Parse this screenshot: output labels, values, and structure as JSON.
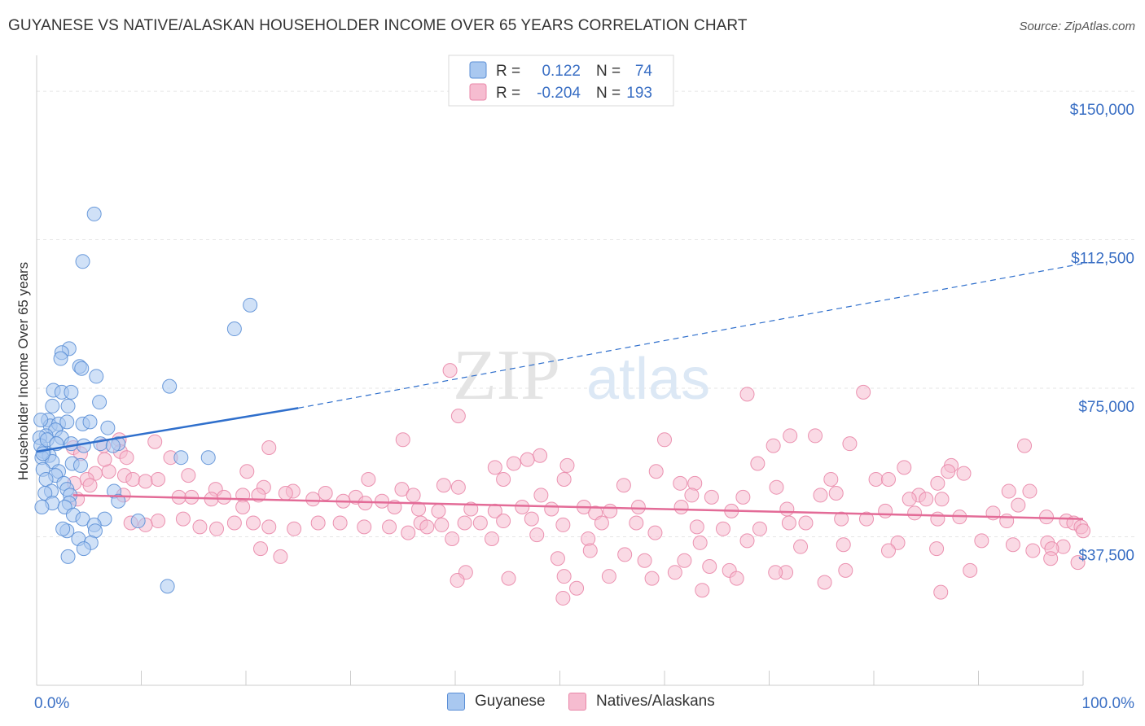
{
  "title": "GUYANESE VS NATIVE/ALASKAN HOUSEHOLDER INCOME OVER 65 YEARS CORRELATION CHART",
  "source": "Source: ZipAtlas.com",
  "watermark": {
    "zip": "ZIP",
    "atlas": "atlas"
  },
  "legend": {
    "guyanese": {
      "r_label": "R =",
      "r_value": "0.122",
      "n_label": "N =",
      "n_value": "74"
    },
    "natives": {
      "r_label": "R =",
      "r_value": "-0.204",
      "n_label": "N =",
      "n_value": "193"
    }
  },
  "bottom_legend": {
    "guyanese": "Guyanese",
    "natives": "Natives/Alaskans"
  },
  "colors": {
    "guyanese_fill": "#a9c8f0",
    "guyanese_stroke": "#5b8fd6",
    "guyanese_line": "#2f6fcc",
    "natives_fill": "#f6bcd0",
    "natives_stroke": "#e987a8",
    "natives_line": "#e36b97",
    "tick_label": "#3a6fc4",
    "grid": "#e6e6e6"
  },
  "chart_data": {
    "type": "scatter",
    "title": "GUYANESE VS NATIVE/ALASKAN HOUSEHOLDER INCOME OVER 65 YEARS CORRELATION CHART",
    "xlabel": "",
    "ylabel": "Householder Income Over 65 years",
    "xlim": [
      0,
      100
    ],
    "ylim": [
      0,
      157000
    ],
    "x_tick_labels": [
      "0.0%",
      "100.0%"
    ],
    "y_ticks": [
      37500,
      75000,
      112500,
      150000
    ],
    "y_tick_labels": [
      "$37,500",
      "$75,000",
      "$112,500",
      "$150,000"
    ],
    "grid": true,
    "legend_position": "top-center",
    "series": [
      {
        "name": "Guyanese",
        "trend": {
          "x": [
            0,
            25
          ],
          "y": [
            59000,
            70000
          ],
          "extended_to": [
            100,
            106500
          ]
        },
        "points": [
          [
            5.5,
            119000
          ],
          [
            4.4,
            107000
          ],
          [
            20.4,
            96000
          ],
          [
            18.9,
            90000
          ],
          [
            3.1,
            85000
          ],
          [
            2.4,
            84000
          ],
          [
            2.3,
            82500
          ],
          [
            4.1,
            80500
          ],
          [
            4.3,
            80000
          ],
          [
            5.7,
            78000
          ],
          [
            1.6,
            74500
          ],
          [
            2.4,
            74000
          ],
          [
            3.3,
            74000
          ],
          [
            12.7,
            75500
          ],
          [
            6.0,
            71500
          ],
          [
            3.0,
            70500
          ],
          [
            1.5,
            70500
          ],
          [
            1.1,
            67000
          ],
          [
            1.3,
            65500
          ],
          [
            2.1,
            66000
          ],
          [
            2.9,
            66500
          ],
          [
            4.4,
            66000
          ],
          [
            5.1,
            66500
          ],
          [
            0.4,
            67000
          ],
          [
            1.8,
            64500
          ],
          [
            6.8,
            65000
          ],
          [
            0.9,
            63000
          ],
          [
            0.3,
            62500
          ],
          [
            2.4,
            62500
          ],
          [
            3.3,
            61000
          ],
          [
            4.5,
            60500
          ],
          [
            6.1,
            61000
          ],
          [
            7.8,
            61000
          ],
          [
            7.3,
            60500
          ],
          [
            0.7,
            59000
          ],
          [
            1.2,
            58000
          ],
          [
            0.5,
            57500
          ],
          [
            1.5,
            56500
          ],
          [
            3.4,
            56000
          ],
          [
            4.2,
            55500
          ],
          [
            13.8,
            57500
          ],
          [
            16.4,
            57500
          ],
          [
            0.6,
            54500
          ],
          [
            2.1,
            54000
          ],
          [
            1.8,
            53000
          ],
          [
            0.9,
            52000
          ],
          [
            2.6,
            51000
          ],
          [
            1.4,
            49000
          ],
          [
            2.9,
            49500
          ],
          [
            0.8,
            48500
          ],
          [
            7.4,
            49000
          ],
          [
            3.2,
            48000
          ],
          [
            1.5,
            46000
          ],
          [
            3.1,
            46000
          ],
          [
            0.5,
            45000
          ],
          [
            2.7,
            45000
          ],
          [
            7.8,
            46500
          ],
          [
            3.5,
            43000
          ],
          [
            4.4,
            42000
          ],
          [
            6.5,
            42000
          ],
          [
            9.7,
            41500
          ],
          [
            5.5,
            40500
          ],
          [
            2.9,
            39000
          ],
          [
            5.6,
            39000
          ],
          [
            2.5,
            39500
          ],
          [
            4.0,
            37000
          ],
          [
            5.2,
            36000
          ],
          [
            4.5,
            34500
          ],
          [
            3.0,
            32500
          ],
          [
            12.5,
            25000
          ],
          [
            0.4,
            60500
          ],
          [
            0.6,
            58500
          ],
          [
            1.0,
            62000
          ],
          [
            1.9,
            61000
          ]
        ]
      },
      {
        "name": "Natives/Alaskans",
        "trend": {
          "x": [
            3.5,
            100
          ],
          "y": [
            48000,
            42000
          ]
        },
        "points": [
          [
            39.5,
            79500
          ],
          [
            67.9,
            73500
          ],
          [
            79.0,
            74000
          ],
          [
            40.3,
            68000
          ],
          [
            35.0,
            62000
          ],
          [
            60.0,
            62000
          ],
          [
            72.0,
            63000
          ],
          [
            74.4,
            63000
          ],
          [
            77.7,
            61000
          ],
          [
            7.9,
            62000
          ],
          [
            11.3,
            61500
          ],
          [
            22.2,
            60000
          ],
          [
            70.4,
            60500
          ],
          [
            94.4,
            60500
          ],
          [
            6.4,
            60500
          ],
          [
            3.5,
            60000
          ],
          [
            8.0,
            59000
          ],
          [
            12.8,
            57500
          ],
          [
            48.1,
            58000
          ],
          [
            46.9,
            57000
          ],
          [
            50.7,
            55500
          ],
          [
            45.6,
            56000
          ],
          [
            43.8,
            55000
          ],
          [
            68.9,
            56000
          ],
          [
            82.9,
            55000
          ],
          [
            87.4,
            55500
          ],
          [
            20.1,
            54000
          ],
          [
            6.9,
            54000
          ],
          [
            14.5,
            53000
          ],
          [
            59.2,
            54000
          ],
          [
            87.1,
            54000
          ],
          [
            88.6,
            53500
          ],
          [
            75.9,
            52000
          ],
          [
            80.2,
            52000
          ],
          [
            81.4,
            52000
          ],
          [
            31.7,
            52000
          ],
          [
            44.6,
            52000
          ],
          [
            50.4,
            52000
          ],
          [
            61.5,
            51000
          ],
          [
            62.9,
            51000
          ],
          [
            86.1,
            51000
          ],
          [
            5.6,
            53500
          ],
          [
            8.4,
            53000
          ],
          [
            9.2,
            52000
          ],
          [
            10.4,
            51500
          ],
          [
            11.6,
            52000
          ],
          [
            4.8,
            52000
          ],
          [
            3.6,
            51000
          ],
          [
            38.9,
            50500
          ],
          [
            70.7,
            50000
          ],
          [
            94.9,
            49000
          ],
          [
            76.4,
            48500
          ],
          [
            92.9,
            49000
          ],
          [
            34.9,
            49500
          ],
          [
            40.3,
            50000
          ],
          [
            56.1,
            50500
          ],
          [
            17.1,
            49500
          ],
          [
            21.7,
            50000
          ],
          [
            24.5,
            49000
          ],
          [
            27.6,
            48500
          ],
          [
            30.5,
            47500
          ],
          [
            36.0,
            48000
          ],
          [
            48.2,
            48000
          ],
          [
            62.6,
            48000
          ],
          [
            74.9,
            48000
          ],
          [
            84.3,
            48000
          ],
          [
            83.4,
            47000
          ],
          [
            85.0,
            47000
          ],
          [
            86.5,
            47000
          ],
          [
            64.5,
            47500
          ],
          [
            67.5,
            47500
          ],
          [
            14.8,
            47500
          ],
          [
            16.7,
            47000
          ],
          [
            17.9,
            47500
          ],
          [
            19.7,
            48000
          ],
          [
            21.2,
            48000
          ],
          [
            23.8,
            48500
          ],
          [
            26.4,
            47000
          ],
          [
            29.3,
            46500
          ],
          [
            31.4,
            46000
          ],
          [
            33.0,
            46500
          ],
          [
            34.2,
            45000
          ],
          [
            36.5,
            44500
          ],
          [
            38.4,
            44000
          ],
          [
            41.5,
            44500
          ],
          [
            43.8,
            44000
          ],
          [
            46.4,
            45000
          ],
          [
            49.2,
            44500
          ],
          [
            52.3,
            45000
          ],
          [
            53.4,
            43500
          ],
          [
            54.8,
            44000
          ],
          [
            57.5,
            45000
          ],
          [
            61.6,
            45000
          ],
          [
            66.4,
            44000
          ],
          [
            71.7,
            44500
          ],
          [
            81.1,
            44000
          ],
          [
            83.9,
            43500
          ],
          [
            91.4,
            43500
          ],
          [
            93.8,
            45500
          ],
          [
            92.7,
            41500
          ],
          [
            96.5,
            42500
          ],
          [
            98.4,
            41500
          ],
          [
            99.1,
            41000
          ],
          [
            99.8,
            40000
          ],
          [
            100.0,
            39000
          ],
          [
            88.2,
            42500
          ],
          [
            86.1,
            42000
          ],
          [
            79.3,
            42000
          ],
          [
            76.9,
            42000
          ],
          [
            73.5,
            41000
          ],
          [
            71.9,
            41000
          ],
          [
            69.1,
            39500
          ],
          [
            65.6,
            39500
          ],
          [
            63.1,
            40000
          ],
          [
            57.3,
            41000
          ],
          [
            54.0,
            41000
          ],
          [
            50.3,
            40500
          ],
          [
            47.3,
            42000
          ],
          [
            44.6,
            41500
          ],
          [
            42.4,
            41000
          ],
          [
            40.9,
            41000
          ],
          [
            38.7,
            40500
          ],
          [
            36.7,
            41000
          ],
          [
            33.7,
            40000
          ],
          [
            31.3,
            40000
          ],
          [
            29.0,
            41000
          ],
          [
            26.9,
            41000
          ],
          [
            24.6,
            39500
          ],
          [
            22.2,
            40000
          ],
          [
            20.7,
            41000
          ],
          [
            18.9,
            41000
          ],
          [
            17.2,
            39500
          ],
          [
            15.6,
            40000
          ],
          [
            14.0,
            42000
          ],
          [
            11.6,
            41500
          ],
          [
            10.4,
            40500
          ],
          [
            9.0,
            41000
          ],
          [
            19.7,
            45000
          ],
          [
            13.6,
            47500
          ],
          [
            8.3,
            48000
          ],
          [
            37.3,
            40000
          ],
          [
            35.5,
            38500
          ],
          [
            39.7,
            37000
          ],
          [
            43.5,
            37000
          ],
          [
            47.8,
            38000
          ],
          [
            52.7,
            37000
          ],
          [
            59.1,
            38500
          ],
          [
            63.4,
            36000
          ],
          [
            67.9,
            36500
          ],
          [
            73.0,
            35000
          ],
          [
            77.1,
            35500
          ],
          [
            82.3,
            36000
          ],
          [
            90.3,
            36500
          ],
          [
            93.3,
            35500
          ],
          [
            96.6,
            36000
          ],
          [
            98.1,
            35000
          ],
          [
            95.2,
            34000
          ],
          [
            97.0,
            34500
          ],
          [
            21.4,
            34500
          ],
          [
            23.3,
            32500
          ],
          [
            49.8,
            32000
          ],
          [
            52.9,
            34000
          ],
          [
            56.2,
            33000
          ],
          [
            58.1,
            31500
          ],
          [
            61.9,
            31500
          ],
          [
            64.3,
            30000
          ],
          [
            61.0,
            28500
          ],
          [
            66.2,
            29000
          ],
          [
            71.6,
            28500
          ],
          [
            77.3,
            29000
          ],
          [
            89.2,
            29000
          ],
          [
            99.5,
            31000
          ],
          [
            96.9,
            32000
          ],
          [
            81.4,
            34000
          ],
          [
            86.0,
            34500
          ],
          [
            58.8,
            27000
          ],
          [
            66.9,
            27000
          ],
          [
            75.3,
            26000
          ],
          [
            45.1,
            27000
          ],
          [
            41.0,
            28500
          ],
          [
            40.2,
            26500
          ],
          [
            50.4,
            27500
          ],
          [
            54.7,
            27500
          ],
          [
            63.6,
            24000
          ],
          [
            70.6,
            28500
          ],
          [
            51.6,
            24500
          ],
          [
            50.3,
            22000
          ],
          [
            86.4,
            23500
          ],
          [
            3.9,
            47000
          ],
          [
            5.1,
            50500
          ],
          [
            6.5,
            57000
          ],
          [
            8.6,
            57500
          ],
          [
            4.2,
            58500
          ]
        ]
      }
    ]
  }
}
